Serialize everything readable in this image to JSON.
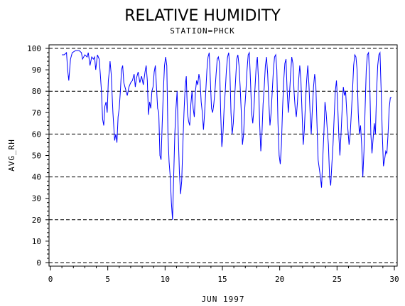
{
  "chart_data": {
    "type": "line",
    "title": "RELATIVE HUMIDITY",
    "subtitle": "STATION=PHCK",
    "xlabel": "JUN 1997",
    "ylabel": "AVG_RH",
    "xlim": [
      0,
      30
    ],
    "ylim": [
      0,
      100
    ],
    "x_ticks": [
      0,
      5,
      10,
      15,
      20,
      25,
      30
    ],
    "y_ticks": [
      0,
      10,
      20,
      30,
      40,
      50,
      60,
      70,
      80,
      90,
      100
    ],
    "gridlines_y": [
      0,
      20,
      40,
      60,
      80,
      100
    ],
    "grid": "dashed horizontal",
    "line_color": "#0000ff",
    "series": [
      {
        "values": [
          [
            1.0,
            97
          ],
          [
            1.2,
            97
          ],
          [
            1.4,
            98
          ],
          [
            1.5,
            90
          ],
          [
            1.6,
            85
          ],
          [
            1.75,
            95
          ],
          [
            1.9,
            98
          ],
          [
            2.2,
            99
          ],
          [
            2.5,
            99
          ],
          [
            2.7,
            98
          ],
          [
            2.8,
            95
          ],
          [
            3.0,
            97
          ],
          [
            3.2,
            96
          ],
          [
            3.3,
            98
          ],
          [
            3.45,
            92
          ],
          [
            3.6,
            96
          ],
          [
            3.75,
            95
          ],
          [
            3.85,
            96
          ],
          [
            3.95,
            90
          ],
          [
            4.1,
            97
          ],
          [
            4.25,
            95
          ],
          [
            4.35,
            88
          ],
          [
            4.45,
            80
          ],
          [
            4.55,
            67
          ],
          [
            4.65,
            64
          ],
          [
            4.75,
            73
          ],
          [
            4.85,
            75
          ],
          [
            4.95,
            70
          ],
          [
            5.05,
            85
          ],
          [
            5.15,
            90
          ],
          [
            5.2,
            94
          ],
          [
            5.3,
            88
          ],
          [
            5.45,
            70
          ],
          [
            5.6,
            57
          ],
          [
            5.7,
            60
          ],
          [
            5.8,
            56
          ],
          [
            5.9,
            68
          ],
          [
            6.0,
            72
          ],
          [
            6.1,
            80
          ],
          [
            6.2,
            90
          ],
          [
            6.3,
            92
          ],
          [
            6.4,
            84
          ],
          [
            6.55,
            81
          ],
          [
            6.7,
            78
          ],
          [
            6.85,
            82
          ],
          [
            7.0,
            84
          ],
          [
            7.15,
            85
          ],
          [
            7.3,
            88
          ],
          [
            7.4,
            82
          ],
          [
            7.5,
            86
          ],
          [
            7.65,
            89
          ],
          [
            7.8,
            84
          ],
          [
            7.95,
            87
          ],
          [
            8.1,
            83
          ],
          [
            8.25,
            89
          ],
          [
            8.35,
            92
          ],
          [
            8.45,
            85
          ],
          [
            8.55,
            69
          ],
          [
            8.65,
            75
          ],
          [
            8.75,
            72
          ],
          [
            8.85,
            80
          ],
          [
            8.95,
            82
          ],
          [
            9.05,
            89
          ],
          [
            9.15,
            92
          ],
          [
            9.25,
            82
          ],
          [
            9.35,
            72
          ],
          [
            9.45,
            70
          ],
          [
            9.55,
            50
          ],
          [
            9.65,
            48
          ],
          [
            9.75,
            65
          ],
          [
            9.85,
            80
          ],
          [
            9.95,
            92
          ],
          [
            10.05,
            96
          ],
          [
            10.15,
            92
          ],
          [
            10.25,
            60
          ],
          [
            10.35,
            47
          ],
          [
            10.45,
            40
          ],
          [
            10.55,
            28
          ],
          [
            10.65,
            20
          ],
          [
            10.75,
            40
          ],
          [
            10.85,
            60
          ],
          [
            10.95,
            72
          ],
          [
            11.05,
            80
          ],
          [
            11.15,
            60
          ],
          [
            11.25,
            42
          ],
          [
            11.35,
            32
          ],
          [
            11.45,
            38
          ],
          [
            11.55,
            55
          ],
          [
            11.65,
            70
          ],
          [
            11.75,
            82
          ],
          [
            11.85,
            87
          ],
          [
            11.95,
            70
          ],
          [
            12.05,
            66
          ],
          [
            12.15,
            64
          ],
          [
            12.25,
            74
          ],
          [
            12.35,
            80
          ],
          [
            12.45,
            72
          ],
          [
            12.55,
            68
          ],
          [
            12.65,
            80
          ],
          [
            12.75,
            85
          ],
          [
            12.85,
            83
          ],
          [
            12.95,
            88
          ],
          [
            13.05,
            85
          ],
          [
            13.15,
            75
          ],
          [
            13.25,
            70
          ],
          [
            13.35,
            62
          ],
          [
            13.45,
            70
          ],
          [
            13.55,
            80
          ],
          [
            13.65,
            90
          ],
          [
            13.75,
            96
          ],
          [
            13.85,
            98
          ],
          [
            13.95,
            85
          ],
          [
            14.05,
            72
          ],
          [
            14.15,
            70
          ],
          [
            14.25,
            74
          ],
          [
            14.35,
            80
          ],
          [
            14.45,
            88
          ],
          [
            14.55,
            95
          ],
          [
            14.65,
            96
          ],
          [
            14.75,
            93
          ],
          [
            14.85,
            70
          ],
          [
            14.95,
            54
          ],
          [
            15.05,
            60
          ],
          [
            15.15,
            72
          ],
          [
            15.25,
            80
          ],
          [
            15.35,
            90
          ],
          [
            15.45,
            96
          ],
          [
            15.55,
            98
          ],
          [
            15.65,
            90
          ],
          [
            15.75,
            70
          ],
          [
            15.85,
            60
          ],
          [
            15.95,
            65
          ],
          [
            16.05,
            75
          ],
          [
            16.15,
            85
          ],
          [
            16.25,
            95
          ],
          [
            16.35,
            97
          ],
          [
            16.45,
            92
          ],
          [
            16.55,
            82
          ],
          [
            16.65,
            70
          ],
          [
            16.75,
            55
          ],
          [
            16.85,
            60
          ],
          [
            16.95,
            72
          ],
          [
            17.05,
            80
          ],
          [
            17.15,
            90
          ],
          [
            17.25,
            97
          ],
          [
            17.35,
            98
          ],
          [
            17.45,
            85
          ],
          [
            17.55,
            70
          ],
          [
            17.65,
            65
          ],
          [
            17.75,
            72
          ],
          [
            17.85,
            82
          ],
          [
            17.95,
            92
          ],
          [
            18.05,
            96
          ],
          [
            18.15,
            85
          ],
          [
            18.25,
            65
          ],
          [
            18.35,
            52
          ],
          [
            18.45,
            60
          ],
          [
            18.55,
            74
          ],
          [
            18.65,
            82
          ],
          [
            18.75,
            92
          ],
          [
            18.85,
            96
          ],
          [
            18.95,
            88
          ],
          [
            19.05,
            75
          ],
          [
            19.15,
            64
          ],
          [
            19.25,
            70
          ],
          [
            19.35,
            80
          ],
          [
            19.45,
            90
          ],
          [
            19.55,
            96
          ],
          [
            19.65,
            97
          ],
          [
            19.75,
            90
          ],
          [
            19.85,
            65
          ],
          [
            19.95,
            50
          ],
          [
            20.05,
            46
          ],
          [
            20.15,
            55
          ],
          [
            20.25,
            72
          ],
          [
            20.35,
            85
          ],
          [
            20.45,
            93
          ],
          [
            20.55,
            95
          ],
          [
            20.65,
            80
          ],
          [
            20.75,
            70
          ],
          [
            20.85,
            78
          ],
          [
            20.95,
            88
          ],
          [
            21.05,
            96
          ],
          [
            21.15,
            93
          ],
          [
            21.25,
            80
          ],
          [
            21.35,
            72
          ],
          [
            21.45,
            68
          ],
          [
            21.55,
            75
          ],
          [
            21.65,
            85
          ],
          [
            21.75,
            92
          ],
          [
            21.85,
            85
          ],
          [
            21.95,
            70
          ],
          [
            22.05,
            55
          ],
          [
            22.15,
            62
          ],
          [
            22.25,
            75
          ],
          [
            22.35,
            85
          ],
          [
            22.45,
            92
          ],
          [
            22.55,
            83
          ],
          [
            22.65,
            70
          ],
          [
            22.75,
            60
          ],
          [
            22.85,
            72
          ],
          [
            22.95,
            82
          ],
          [
            23.05,
            88
          ],
          [
            23.15,
            83
          ],
          [
            23.25,
            65
          ],
          [
            23.35,
            48
          ],
          [
            23.45,
            44
          ],
          [
            23.55,
            40
          ],
          [
            23.65,
            35
          ],
          [
            23.75,
            48
          ],
          [
            23.85,
            60
          ],
          [
            23.95,
            75
          ],
          [
            24.05,
            70
          ],
          [
            24.15,
            62
          ],
          [
            24.25,
            55
          ],
          [
            24.35,
            40
          ],
          [
            24.45,
            36
          ],
          [
            24.55,
            46
          ],
          [
            24.65,
            55
          ],
          [
            24.75,
            68
          ],
          [
            24.85,
            80
          ],
          [
            24.95,
            85
          ],
          [
            25.05,
            75
          ],
          [
            25.15,
            60
          ],
          [
            25.25,
            50
          ],
          [
            25.35,
            60
          ],
          [
            25.45,
            72
          ],
          [
            25.55,
            82
          ],
          [
            25.65,
            78
          ],
          [
            25.75,
            80
          ],
          [
            25.85,
            70
          ],
          [
            25.95,
            62
          ],
          [
            26.05,
            55
          ],
          [
            26.15,
            60
          ],
          [
            26.25,
            70
          ],
          [
            26.35,
            80
          ],
          [
            26.45,
            92
          ],
          [
            26.55,
            97
          ],
          [
            26.65,
            96
          ],
          [
            26.75,
            90
          ],
          [
            26.85,
            70
          ],
          [
            26.95,
            60
          ],
          [
            27.05,
            64
          ],
          [
            27.15,
            55
          ],
          [
            27.25,
            40
          ],
          [
            27.35,
            52
          ],
          [
            27.45,
            72
          ],
          [
            27.55,
            90
          ],
          [
            27.65,
            97
          ],
          [
            27.75,
            98
          ],
          [
            27.85,
            85
          ],
          [
            27.95,
            60
          ],
          [
            28.05,
            51
          ],
          [
            28.15,
            58
          ],
          [
            28.25,
            65
          ],
          [
            28.35,
            60
          ],
          [
            28.45,
            80
          ],
          [
            28.55,
            92
          ],
          [
            28.65,
            97
          ],
          [
            28.75,
            98
          ],
          [
            28.85,
            80
          ],
          [
            28.95,
            60
          ],
          [
            29.05,
            45
          ],
          [
            29.15,
            48
          ],
          [
            29.25,
            52
          ],
          [
            29.35,
            51
          ],
          [
            29.45,
            60
          ],
          [
            29.55,
            72
          ],
          [
            29.65,
            77
          ],
          [
            29.75,
            77
          ]
        ]
      }
    ]
  }
}
